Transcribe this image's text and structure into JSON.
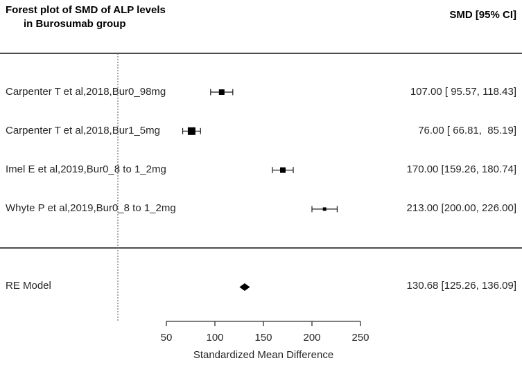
{
  "title": {
    "line1": "Forest plot of SMD of ALP levels",
    "line2": "in Burosumab group"
  },
  "column_header": "SMD [95% CI]",
  "chart_data": {
    "type": "forest",
    "title": "Forest plot of SMD of ALP levels in Burosumab group",
    "estimate_column_header": "SMD [95% CI]",
    "studies": [
      {
        "label": "Carpenter T et al,2018,Bur0_98mg",
        "smd": 107.0,
        "ci_low": 95.57,
        "ci_high": 118.43,
        "estimate_text": "107.00 [ 95.57, 118.43]",
        "marker_size": 8
      },
      {
        "label": "Carpenter T et al,2018,Bur1_5mg",
        "smd": 76.0,
        "ci_low": 66.81,
        "ci_high": 85.19,
        "estimate_text": "76.00 [ 66.81,  85.19]",
        "marker_size": 11
      },
      {
        "label": "Imel E et al,2019,Bur0_8 to 1_2mg",
        "smd": 170.0,
        "ci_low": 159.26,
        "ci_high": 180.74,
        "estimate_text": "170.00 [159.26, 180.74]",
        "marker_size": 8
      },
      {
        "label": "Whyte P et al,2019,Bur0_8 to 1_2mg",
        "smd": 213.0,
        "ci_low": 200.0,
        "ci_high": 226.0,
        "estimate_text": "213.00 [200.00, 226.00]",
        "marker_size": 5
      }
    ],
    "summary": {
      "label": "RE Model",
      "smd": 130.68,
      "ci_low": 125.26,
      "ci_high": 136.09,
      "estimate_text": "130.68 [125.26, 136.09]"
    },
    "xaxis": {
      "ticks": [
        50,
        100,
        150,
        200,
        250
      ],
      "range_shown": [
        50,
        250
      ],
      "label": "Standardized Mean Difference",
      "reference_line_value": 0
    },
    "colors": {
      "marker": "#000000",
      "whisker": "#1a1a1a",
      "axis": "#333333",
      "reference_line": "#555555",
      "separator": "#4d4d4d"
    },
    "legend_position": "none",
    "grid": false
  }
}
